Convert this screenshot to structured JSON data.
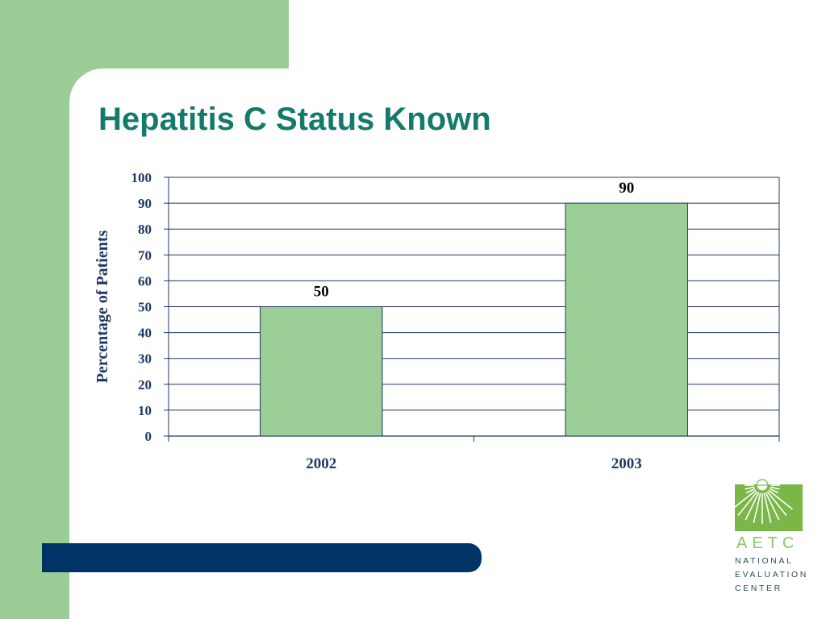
{
  "slide": {
    "title": "Hepatitis C Status Known"
  },
  "colors": {
    "accent_green": "#9dcd97",
    "title_teal": "#137a6c",
    "bar_fill": "#9cce98",
    "axis_navy": "#1f3864",
    "bottom_bar_navy": "#003366",
    "logo_green": "#7ab648"
  },
  "chart_data": {
    "type": "bar",
    "categories": [
      "2002",
      "2003"
    ],
    "values": [
      50,
      90
    ],
    "data_labels": [
      "50",
      "90"
    ],
    "title": "",
    "xlabel": "",
    "ylabel": "Percentage of Patients",
    "ylim": [
      0,
      100
    ],
    "yticks": [
      0,
      10,
      20,
      30,
      40,
      50,
      60,
      70,
      80,
      90,
      100
    ],
    "grid": true,
    "legend": "none"
  },
  "logo": {
    "icon": "sunburst-icon",
    "letters": "AETC",
    "lines": [
      "NATIONAL",
      "EVALUATION",
      "CENTER"
    ]
  }
}
